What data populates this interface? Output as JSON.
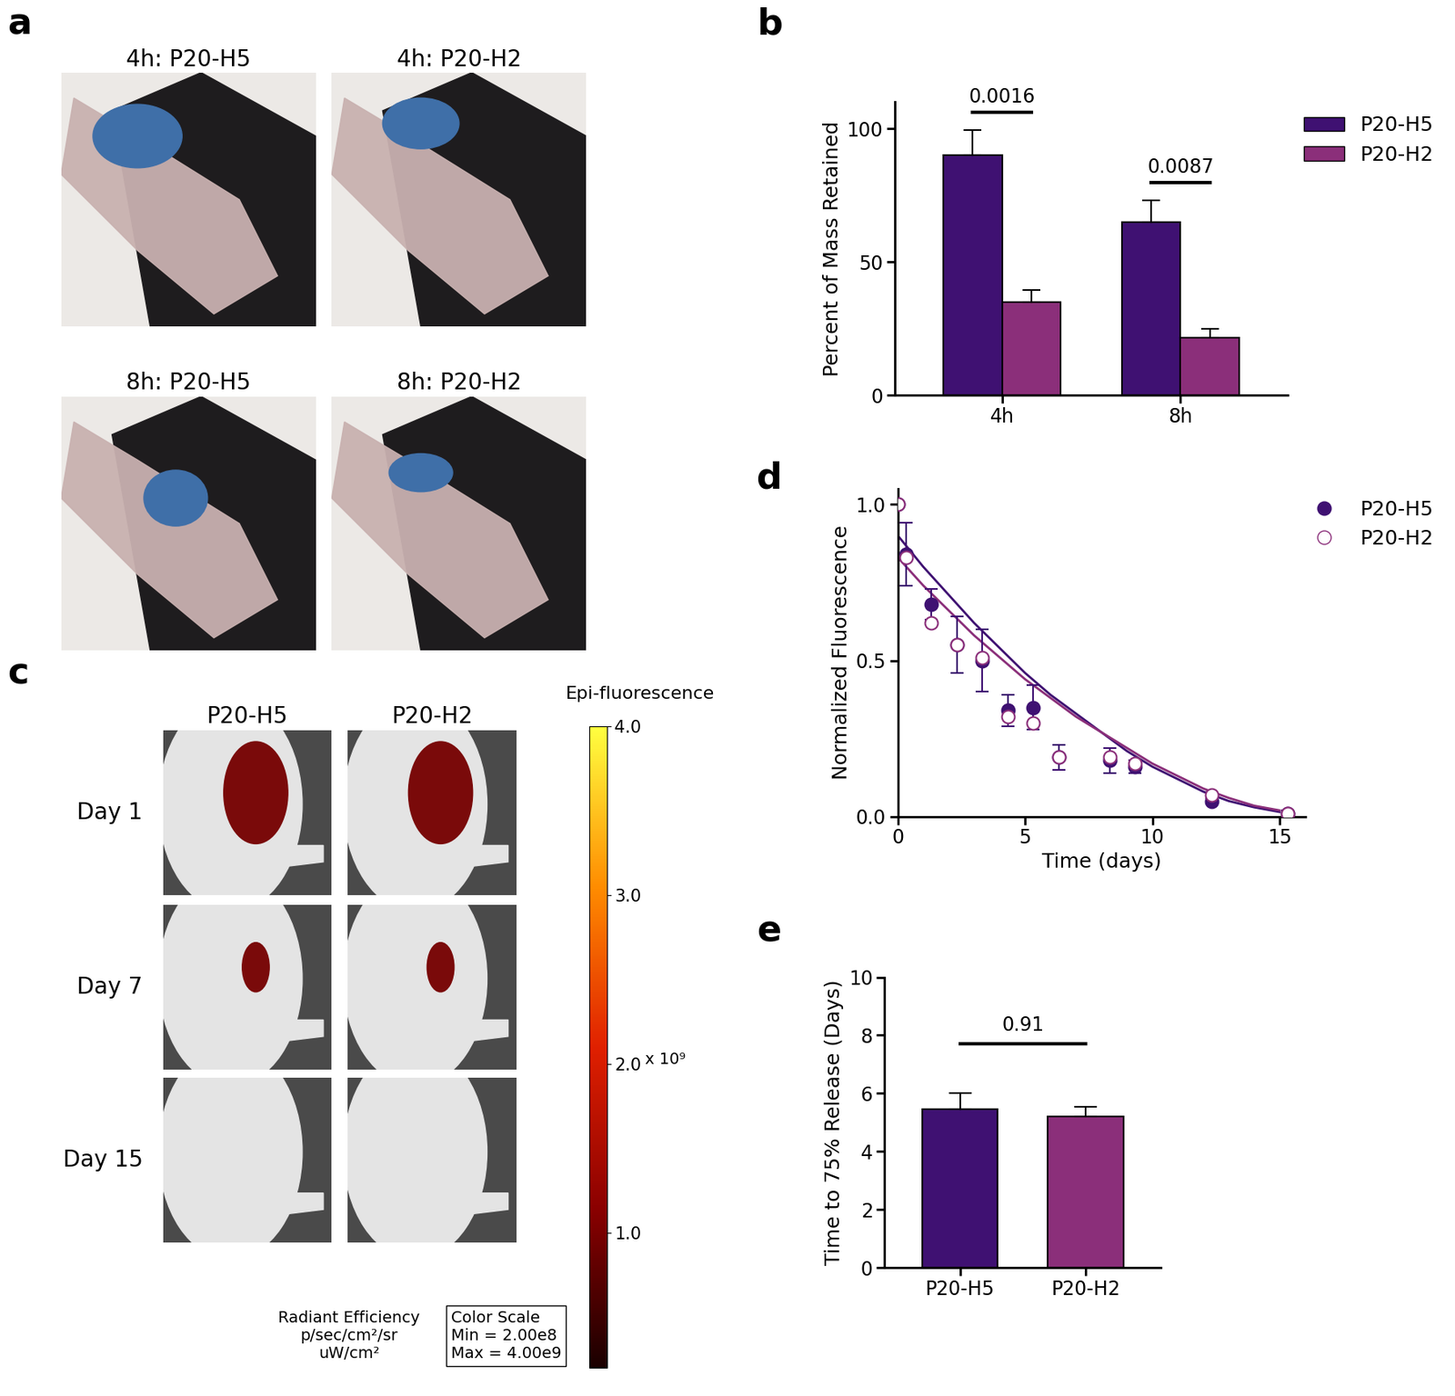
{
  "photos": {
    "panel": "a",
    "titles": [
      [
        "4h: P20-H5",
        "4h: P20-H2"
      ],
      [
        "8h: P20-H5",
        "8h: P20-H2"
      ]
    ]
  },
  "imaging": {
    "panel": "c",
    "columns": [
      "P20-H5",
      "P20-H2"
    ],
    "rows": [
      "Day 1",
      "Day 7",
      "Day 15"
    ],
    "colorbar": {
      "title": "Epi-fluorescence",
      "clim": [
        0.2,
        4.0
      ],
      "ticks": [
        1.0,
        2.0,
        3.0,
        4.0
      ],
      "multiplier": "x 10⁹"
    },
    "units_label": [
      "Radiant Efficiency",
      "p/sec/cm²/sr",
      "uW/cm²"
    ],
    "scale_box": [
      "Color Scale",
      "Min = 2.00e8",
      "Max = 4.00e9"
    ]
  },
  "chart_data": [
    {
      "panel": "b",
      "type": "bar",
      "categories": [
        "4h",
        "8h"
      ],
      "y_label": "Percent of Mass Retained",
      "ylim": [
        0,
        110
      ],
      "yticks": [
        0,
        50,
        100
      ],
      "legend": "upper right",
      "series": [
        {
          "name": "P20-H5",
          "color": "#3f1172",
          "values": [
            90,
            65
          ],
          "errors": [
            9.5,
            8
          ]
        },
        {
          "name": "P20-H2",
          "color": "#8b2f7a",
          "values": [
            35,
            21.5
          ],
          "errors": [
            4.5,
            3.5
          ]
        }
      ],
      "annotations": [
        {
          "text": "0.0016",
          "category": "4h"
        },
        {
          "text": "0.0087",
          "category": "8h"
        }
      ]
    },
    {
      "panel": "d",
      "type": "scatter",
      "x_label": "Time (days)",
      "y_label": "Normalized Fluorescence",
      "xlim": [
        0,
        16
      ],
      "xticks": [
        0,
        5,
        10,
        15
      ],
      "ylim": [
        0,
        1.05
      ],
      "yticks": [
        0.0,
        0.5,
        1.0
      ],
      "legend": "upper right",
      "series": [
        {
          "name": "P20-H5",
          "color": "#3f1172",
          "marker": "filled_circle",
          "x": [
            0,
            0.33,
            1.33,
            2.33,
            3.33,
            4.33,
            5.33,
            6.33,
            8.33,
            9.33,
            12.33,
            15.33
          ],
          "values": [
            1.0,
            0.84,
            0.68,
            0.55,
            0.5,
            0.34,
            0.35,
            0.19,
            0.18,
            0.16,
            0.05,
            0.01
          ],
          "errors": [
            0,
            0.1,
            0.05,
            0.09,
            0.1,
            0.05,
            0.07,
            0.04,
            0.04,
            0.02,
            0.01,
            0.01
          ],
          "fit": {
            "x": [
              0,
              1,
              2,
              3,
              4,
              5,
              6,
              7,
              8,
              9,
              10,
              11,
              12,
              13,
              14,
              15
            ],
            "values": [
              0.9,
              0.8,
              0.71,
              0.62,
              0.54,
              0.46,
              0.39,
              0.33,
              0.27,
              0.21,
              0.16,
              0.12,
              0.08,
              0.05,
              0.03,
              0.015
            ]
          }
        },
        {
          "name": "P20-H2",
          "color": "#8b2f7a",
          "marker": "open_circle",
          "x": [
            0,
            0.33,
            1.33,
            2.33,
            3.33,
            4.33,
            5.33,
            6.33,
            8.33,
            9.33,
            12.33,
            15.33
          ],
          "values": [
            1.0,
            0.83,
            0.62,
            0.55,
            0.51,
            0.32,
            0.3,
            0.19,
            0.19,
            0.17,
            0.07,
            0.01
          ],
          "fit": {
            "x": [
              0,
              1,
              2,
              3,
              4,
              5,
              6,
              7,
              8,
              9,
              10,
              11,
              12,
              13,
              14,
              15
            ],
            "values": [
              0.83,
              0.74,
              0.66,
              0.58,
              0.51,
              0.44,
              0.38,
              0.32,
              0.27,
              0.22,
              0.17,
              0.13,
              0.09,
              0.06,
              0.035,
              0.02
            ]
          }
        }
      ]
    },
    {
      "panel": "e",
      "type": "bar",
      "categories": [
        "P20-H5",
        "P20-H2"
      ],
      "values": [
        5.45,
        5.2
      ],
      "errors": [
        0.55,
        0.35
      ],
      "colors": [
        "#3f1172",
        "#8b2f7a"
      ],
      "y_label": "Time to 75% Release (Days)",
      "ylim": [
        0,
        10
      ],
      "yticks": [
        0,
        2,
        4,
        6,
        8,
        10
      ],
      "annotations": [
        {
          "text": "0.91",
          "categories": [
            "P20-H5",
            "P20-H2"
          ]
        }
      ]
    }
  ]
}
